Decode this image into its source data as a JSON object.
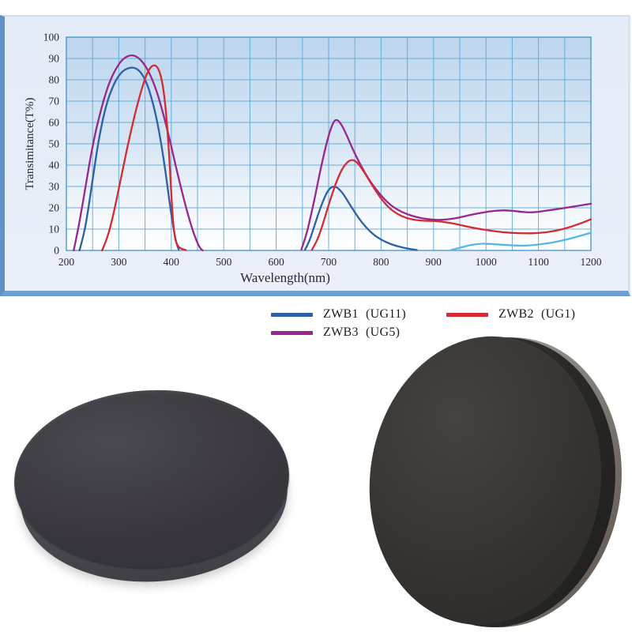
{
  "colors": {
    "panel_border": "#6f9fd0",
    "panel_left_bar": "#6092c8",
    "panel_bg": "#e7edf8",
    "grid_line": "#5aa9d7",
    "plot_border": "#3e94c9",
    "zwb1_blue": "#2e5fa7",
    "zwb1_nir_cyan": "#55b8e4",
    "zwb2_red": "#d42a30",
    "zwb3_purple": "#97268f"
  },
  "chart_data": {
    "type": "line",
    "title": "",
    "xlabel": "Wavelength(nm)",
    "ylabel": "Transimitance(T%)",
    "xlim": [
      200,
      1200
    ],
    "ylim": [
      0,
      100
    ],
    "x_ticks": [
      200,
      300,
      400,
      500,
      600,
      700,
      800,
      900,
      1000,
      1100,
      1200
    ],
    "y_ticks": [
      0,
      10,
      20,
      30,
      40,
      50,
      60,
      70,
      80,
      90,
      100
    ],
    "x_grid_step": 50,
    "y_grid_step": 10,
    "grid": "on",
    "legend_position": "below-chart",
    "series": [
      {
        "name": "ZWB3 (UG5)",
        "color": "#97268f",
        "segments": [
          [
            [
              214,
              0
            ],
            [
              221,
              8
            ],
            [
              229,
              19
            ],
            [
              238,
              32
            ],
            [
              247,
              45
            ],
            [
              256,
              56
            ],
            [
              265,
              65
            ],
            [
              274,
              73
            ],
            [
              284,
              80
            ],
            [
              294,
              85
            ],
            [
              304,
              88.8
            ],
            [
              314,
              90.8
            ],
            [
              323,
              91.6
            ],
            [
              332,
              91.2
            ],
            [
              341,
              89.6
            ],
            [
              350,
              86.8
            ],
            [
              359,
              82.8
            ],
            [
              368,
              77.5
            ],
            [
              377,
              70.8
            ],
            [
              386,
              62.8
            ],
            [
              395,
              54
            ],
            [
              404,
              44.5
            ],
            [
              413,
              35
            ],
            [
              422,
              26
            ],
            [
              431,
              17.5
            ],
            [
              440,
              10
            ],
            [
              448,
              4.5
            ],
            [
              455,
              1
            ],
            [
              460,
              0
            ]
          ],
          [
            [
              648,
              0.5
            ],
            [
              656,
              6
            ],
            [
              664,
              14
            ],
            [
              673,
              24
            ],
            [
              682,
              35
            ],
            [
              691,
              45
            ],
            [
              699,
              53
            ],
            [
              706,
              58.5
            ],
            [
              712,
              61.3
            ],
            [
              718,
              61
            ],
            [
              725,
              58.8
            ],
            [
              733,
              54.8
            ],
            [
              743,
              49
            ],
            [
              755,
              42.8
            ],
            [
              768,
              36.8
            ],
            [
              782,
              31.3
            ],
            [
              797,
              26.6
            ],
            [
              813,
              22.3
            ],
            [
              830,
              19.2
            ],
            [
              848,
              17.1
            ],
            [
              867,
              15.6
            ],
            [
              887,
              14.7
            ],
            [
              907,
              14.3
            ],
            [
              927,
              14.5
            ],
            [
              947,
              15.3
            ],
            [
              967,
              16.5
            ],
            [
              987,
              17.5
            ],
            [
              1007,
              18.3
            ],
            [
              1027,
              18.8
            ],
            [
              1047,
              18.7
            ],
            [
              1067,
              18.1
            ],
            [
              1082,
              17.8
            ],
            [
              1097,
              18
            ],
            [
              1117,
              18.7
            ],
            [
              1142,
              19.6
            ],
            [
              1170,
              20.7
            ],
            [
              1200,
              21.9
            ]
          ]
        ]
      },
      {
        "name": "ZWB1 NIR tail",
        "color": "#55b8e4",
        "segments": [
          [
            [
              933,
              0.2
            ],
            [
              950,
              1.2
            ],
            [
              967,
              2.4
            ],
            [
              985,
              3.1
            ],
            [
              1000,
              3.2
            ],
            [
              1020,
              2.9
            ],
            [
              1045,
              2.4
            ],
            [
              1070,
              2.2
            ],
            [
              1095,
              2.6
            ],
            [
              1120,
              3.4
            ],
            [
              1145,
              4.6
            ],
            [
              1170,
              6.2
            ],
            [
              1200,
              8.3
            ]
          ]
        ]
      },
      {
        "name": "ZWB1 (UG11)",
        "color": "#2e5fa7",
        "segments": [
          [
            [
              225,
              0
            ],
            [
              233,
              7
            ],
            [
              241,
              18
            ],
            [
              250,
              33
            ],
            [
              259,
              48
            ],
            [
              268,
              60
            ],
            [
              277,
              69
            ],
            [
              287,
              76
            ],
            [
              297,
              81
            ],
            [
              307,
              84
            ],
            [
              317,
              85.5
            ],
            [
              327,
              85.8
            ],
            [
              336,
              85
            ],
            [
              345,
              82.5
            ],
            [
              354,
              78
            ],
            [
              363,
              71
            ],
            [
              372,
              62
            ],
            [
              381,
              50
            ],
            [
              389,
              37
            ],
            [
              396,
              24
            ],
            [
              403,
              12
            ],
            [
              409,
              4
            ],
            [
              414,
              0.5
            ]
          ],
          [
            [
              655,
              0.3
            ],
            [
              663,
              4
            ],
            [
              671,
              10
            ],
            [
              680,
              17
            ],
            [
              689,
              23
            ],
            [
              697,
              27.5
            ],
            [
              705,
              29.7
            ],
            [
              712,
              30
            ],
            [
              719,
              29
            ],
            [
              728,
              26.5
            ],
            [
              738,
              22.5
            ],
            [
              750,
              17.8
            ],
            [
              763,
              13.2
            ],
            [
              777,
              9.3
            ],
            [
              792,
              6.2
            ],
            [
              808,
              4
            ],
            [
              826,
              2.3
            ],
            [
              845,
              1.1
            ],
            [
              868,
              0.2
            ]
          ]
        ]
      },
      {
        "name": "ZWB2 (UG1)",
        "color": "#d42a30",
        "segments": [
          [
            [
              268,
              0
            ],
            [
              277,
              5
            ],
            [
              286,
              13
            ],
            [
              295,
              23
            ],
            [
              305,
              35
            ],
            [
              315,
              47
            ],
            [
              325,
              58
            ],
            [
              335,
              68
            ],
            [
              344,
              76
            ],
            [
              352,
              82
            ],
            [
              359,
              85.5
            ],
            [
              366,
              87
            ],
            [
              373,
              86.3
            ],
            [
              379,
              83
            ],
            [
              385,
              76
            ],
            [
              390,
              65
            ],
            [
              394,
              52
            ],
            [
              398,
              36
            ],
            [
              402,
              18
            ],
            [
              406,
              7
            ],
            [
              411,
              2.5
            ],
            [
              418,
              0.8
            ],
            [
              428,
              0.2
            ]
          ],
          [
            [
              668,
              0.3
            ],
            [
              677,
              4
            ],
            [
              686,
              10
            ],
            [
              696,
              18
            ],
            [
              706,
              26
            ],
            [
              716,
              33
            ],
            [
              726,
              38.5
            ],
            [
              736,
              41.5
            ],
            [
              744,
              42.6
            ],
            [
              752,
              41.8
            ],
            [
              761,
              39.3
            ],
            [
              772,
              35
            ],
            [
              785,
              29.8
            ],
            [
              799,
              24.6
            ],
            [
              814,
              20.2
            ],
            [
              830,
              17.2
            ],
            [
              848,
              15.1
            ],
            [
              866,
              14.2
            ],
            [
              885,
              13.9
            ],
            [
              903,
              13.8
            ],
            [
              922,
              13.3
            ],
            [
              942,
              12.4
            ],
            [
              962,
              11.3
            ],
            [
              982,
              10.3
            ],
            [
              1002,
              9.5
            ],
            [
              1025,
              8.7
            ],
            [
              1050,
              8.2
            ],
            [
              1075,
              8
            ],
            [
              1100,
              8.1
            ],
            [
              1125,
              8.8
            ],
            [
              1150,
              10.2
            ],
            [
              1175,
              12.2
            ],
            [
              1200,
              14.6
            ]
          ]
        ]
      }
    ]
  },
  "legend": {
    "items": [
      {
        "label": "ZWB1 (UG11)",
        "color": "#2e5fa7"
      },
      {
        "label": "ZWB2 (UG1)",
        "color": "#d42a30"
      },
      {
        "label": "ZWB3 (UG5)",
        "color": "#97268f"
      }
    ]
  },
  "photos": {
    "left_filter": "dark round optical filter glass, angled view",
    "right_filter": "dark round optical filter glass, near face-on view"
  }
}
